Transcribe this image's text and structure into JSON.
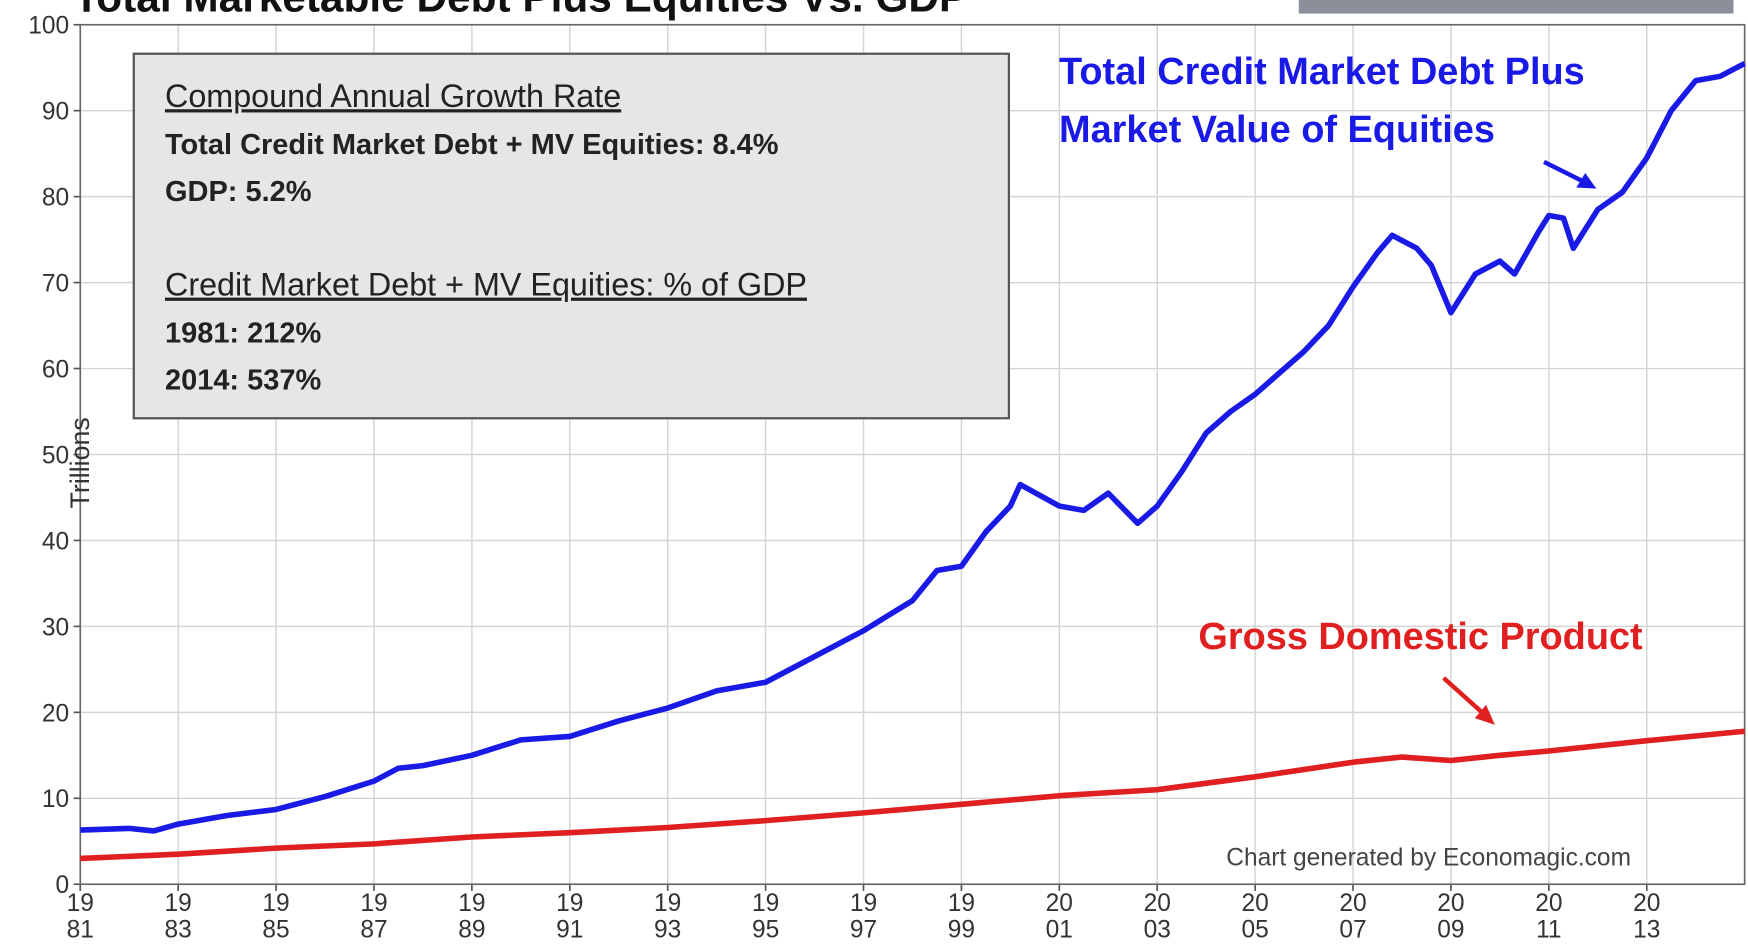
{
  "chart_data": {
    "type": "line",
    "title": "Total Marketable Debt Plus Equities Vs. GDP",
    "ylabel": "Trillions",
    "xlim": [
      1981,
      2015
    ],
    "ylim": [
      0,
      100
    ],
    "xticks": [
      {
        "value": 1981,
        "label": "19\n81"
      },
      {
        "value": 1983,
        "label": "19\n83"
      },
      {
        "value": 1985,
        "label": "19\n85"
      },
      {
        "value": 1987,
        "label": "19\n87"
      },
      {
        "value": 1989,
        "label": "19\n89"
      },
      {
        "value": 1991,
        "label": "19\n91"
      },
      {
        "value": 1993,
        "label": "19\n93"
      },
      {
        "value": 1995,
        "label": "19\n95"
      },
      {
        "value": 1997,
        "label": "19\n97"
      },
      {
        "value": 1999,
        "label": "19\n99"
      },
      {
        "value": 2001,
        "label": "20\n01"
      },
      {
        "value": 2003,
        "label": "20\n03"
      },
      {
        "value": 2005,
        "label": "20\n05"
      },
      {
        "value": 2007,
        "label": "20\n07"
      },
      {
        "value": 2009,
        "label": "20\n09"
      },
      {
        "value": 2011,
        "label": "20\n11"
      },
      {
        "value": 2013,
        "label": "20\n13"
      }
    ],
    "yticks": [
      0,
      10,
      20,
      30,
      40,
      50,
      60,
      70,
      80,
      90,
      100
    ],
    "grid": true,
    "series": [
      {
        "name": "Total Credit Market Debt Plus Market Value of  Equities",
        "color": "#1a1ae6",
        "x": [
          1981,
          1982,
          1982.5,
          1983,
          1984,
          1985,
          1986,
          1987,
          1987.5,
          1988,
          1989,
          1990,
          1991,
          1992,
          1993,
          1994,
          1995,
          1996,
          1997,
          1998,
          1998.5,
          1999,
          1999.5,
          2000,
          2000.2,
          2001,
          2001.5,
          2002,
          2002.6,
          2003,
          2003.5,
          2004,
          2004.5,
          2005,
          2006,
          2006.5,
          2007,
          2007.5,
          2007.8,
          2008.3,
          2008.6,
          2009,
          2009.5,
          2010,
          2010.3,
          2010.8,
          2011,
          2011.3,
          2011.5,
          2012,
          2012.5,
          2013,
          2013.5,
          2014,
          2014.5,
          2015
        ],
        "values": [
          6.3,
          6.5,
          6.2,
          7,
          8,
          8.7,
          10.2,
          12,
          13.5,
          13.8,
          15,
          16.8,
          17.2,
          19,
          20.5,
          22.5,
          23.5,
          26.5,
          29.5,
          33,
          36.5,
          37,
          41,
          44,
          46.5,
          44,
          43.5,
          45.5,
          42,
          44,
          48,
          52.5,
          55,
          57,
          62,
          65,
          69.5,
          73.5,
          75.5,
          74,
          72,
          66.5,
          71,
          72.5,
          71,
          76,
          77.8,
          77.5,
          74,
          78.5,
          80.5,
          84.5,
          90,
          93.5,
          94,
          95.5
        ]
      },
      {
        "name": "Gross Domestic Product",
        "color": "#e02020",
        "x": [
          1981,
          1983,
          1985,
          1987,
          1989,
          1991,
          1993,
          1995,
          1997,
          1999,
          2001,
          2003,
          2005,
          2007,
          2008,
          2009,
          2010,
          2011,
          2013,
          2015
        ],
        "values": [
          3,
          3.5,
          4.2,
          4.7,
          5.5,
          6,
          6.6,
          7.4,
          8.3,
          9.3,
          10.3,
          11,
          12.5,
          14.2,
          14.8,
          14.4,
          15,
          15.5,
          16.7,
          17.8
        ]
      }
    ],
    "info_box": {
      "heading1": "Compound Annual Growth Rate",
      "line1": "Total Credit Market Debt + MV Equities:  8.4%",
      "line2": "GDP:  5.2%",
      "heading2": "Credit Market Debt + MV Equities: % of GDP",
      "line3": "1981:  212%",
      "line4": "2014:  537%"
    },
    "source": "Chart generated by Economagic.com"
  }
}
